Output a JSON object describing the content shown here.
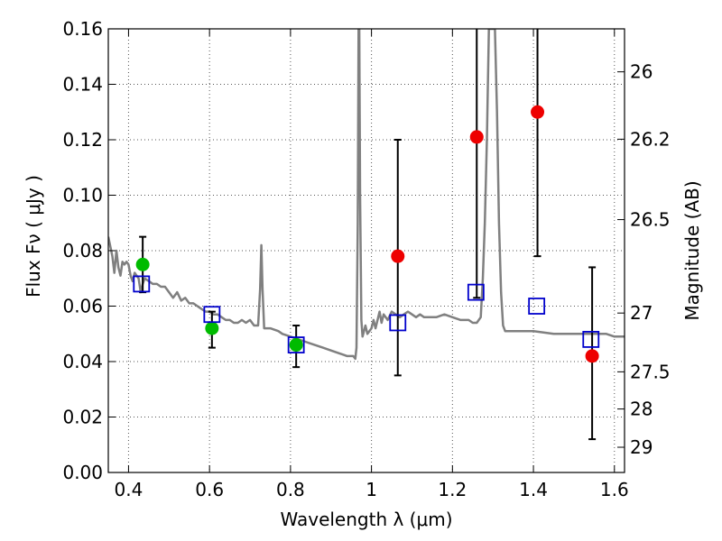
{
  "chart_data": {
    "type": "scatter",
    "xlabel": "Wavelength  λ (μm)",
    "ylabel": "Flux  Fν  ( μJy )",
    "ylabel_right": "Magnitude (AB)",
    "xlim": [
      0.35,
      1.625
    ],
    "ylim": [
      0.0,
      0.16
    ],
    "grid": true,
    "x_ticks": [
      0.4,
      0.6,
      0.8,
      1.0,
      1.2,
      1.4,
      1.6
    ],
    "x_tick_labels": [
      "0.4",
      "0.6",
      "0.8",
      "1",
      "1.2",
      "1.4",
      "1.6"
    ],
    "y_ticks": [
      0.0,
      0.02,
      0.04,
      0.06,
      0.08,
      0.1,
      0.12,
      0.14,
      0.16
    ],
    "y_tick_labels": [
      "0.00",
      "0.02",
      "0.04",
      "0.06",
      "0.08",
      "0.10",
      "0.12",
      "0.14",
      "0.16"
    ],
    "right_ticks": [
      {
        "label": "26",
        "flux": 0.1445
      },
      {
        "label": "26.2",
        "flux": 0.1202
      },
      {
        "label": "26.5",
        "flux": 0.0912
      },
      {
        "label": "27",
        "flux": 0.0575
      },
      {
        "label": "27.5",
        "flux": 0.0363
      },
      {
        "label": "28",
        "flux": 0.0229
      },
      {
        "label": "29",
        "flux": 0.0091
      }
    ],
    "colors": {
      "template": "#808080",
      "ground": "#00bb00",
      "hst": "#ee0000",
      "model": "#0000cc",
      "errorbar": "#000000",
      "grid": "#555555"
    },
    "template_spectrum": [
      [
        0.35,
        0.085
      ],
      [
        0.36,
        0.078
      ],
      [
        0.365,
        0.072
      ],
      [
        0.37,
        0.08
      ],
      [
        0.375,
        0.074
      ],
      [
        0.38,
        0.071
      ],
      [
        0.385,
        0.076
      ],
      [
        0.39,
        0.075
      ],
      [
        0.395,
        0.076
      ],
      [
        0.4,
        0.075
      ],
      [
        0.405,
        0.071
      ],
      [
        0.41,
        0.069
      ],
      [
        0.415,
        0.072
      ],
      [
        0.42,
        0.071
      ],
      [
        0.425,
        0.07
      ],
      [
        0.43,
        0.065
      ],
      [
        0.435,
        0.068
      ],
      [
        0.44,
        0.07
      ],
      [
        0.45,
        0.069
      ],
      [
        0.46,
        0.068
      ],
      [
        0.47,
        0.068
      ],
      [
        0.48,
        0.067
      ],
      [
        0.49,
        0.067
      ],
      [
        0.5,
        0.065
      ],
      [
        0.51,
        0.063
      ],
      [
        0.52,
        0.065
      ],
      [
        0.53,
        0.062
      ],
      [
        0.54,
        0.063
      ],
      [
        0.55,
        0.061
      ],
      [
        0.56,
        0.061
      ],
      [
        0.57,
        0.06
      ],
      [
        0.58,
        0.059
      ],
      [
        0.59,
        0.058
      ],
      [
        0.6,
        0.058
      ],
      [
        0.61,
        0.057
      ],
      [
        0.62,
        0.057
      ],
      [
        0.63,
        0.056
      ],
      [
        0.64,
        0.055
      ],
      [
        0.65,
        0.055
      ],
      [
        0.66,
        0.054
      ],
      [
        0.67,
        0.054
      ],
      [
        0.68,
        0.055
      ],
      [
        0.69,
        0.054
      ],
      [
        0.7,
        0.055
      ],
      [
        0.71,
        0.053
      ],
      [
        0.72,
        0.053
      ],
      [
        0.725,
        0.066
      ],
      [
        0.728,
        0.082
      ],
      [
        0.731,
        0.066
      ],
      [
        0.735,
        0.052
      ],
      [
        0.75,
        0.052
      ],
      [
        0.77,
        0.051
      ],
      [
        0.78,
        0.05
      ],
      [
        0.8,
        0.049
      ],
      [
        0.82,
        0.048
      ],
      [
        0.84,
        0.047
      ],
      [
        0.86,
        0.046
      ],
      [
        0.88,
        0.045
      ],
      [
        0.9,
        0.044
      ],
      [
        0.92,
        0.043
      ],
      [
        0.94,
        0.042
      ],
      [
        0.955,
        0.042
      ],
      [
        0.96,
        0.041
      ],
      [
        0.963,
        0.045
      ],
      [
        0.966,
        0.09
      ],
      [
        0.968,
        0.16
      ],
      [
        0.97,
        0.16
      ],
      [
        0.972,
        0.1
      ],
      [
        0.975,
        0.055
      ],
      [
        0.978,
        0.049
      ],
      [
        0.985,
        0.053
      ],
      [
        0.99,
        0.05
      ],
      [
        1.0,
        0.052
      ],
      [
        1.005,
        0.055
      ],
      [
        1.01,
        0.052
      ],
      [
        1.02,
        0.058
      ],
      [
        1.025,
        0.054
      ],
      [
        1.03,
        0.057
      ],
      [
        1.04,
        0.055
      ],
      [
        1.05,
        0.058
      ],
      [
        1.06,
        0.057
      ],
      [
        1.07,
        0.056
      ],
      [
        1.08,
        0.057
      ],
      [
        1.09,
        0.058
      ],
      [
        1.1,
        0.057
      ],
      [
        1.11,
        0.056
      ],
      [
        1.12,
        0.057
      ],
      [
        1.13,
        0.056
      ],
      [
        1.14,
        0.056
      ],
      [
        1.16,
        0.056
      ],
      [
        1.18,
        0.057
      ],
      [
        1.2,
        0.056
      ],
      [
        1.22,
        0.055
      ],
      [
        1.24,
        0.055
      ],
      [
        1.25,
        0.054
      ],
      [
        1.26,
        0.054
      ],
      [
        1.27,
        0.056
      ],
      [
        1.275,
        0.07
      ],
      [
        1.28,
        0.09
      ],
      [
        1.285,
        0.12
      ],
      [
        1.29,
        0.16
      ],
      [
        1.305,
        0.16
      ],
      [
        1.31,
        0.13
      ],
      [
        1.315,
        0.09
      ],
      [
        1.32,
        0.065
      ],
      [
        1.325,
        0.053
      ],
      [
        1.33,
        0.051
      ],
      [
        1.35,
        0.051
      ],
      [
        1.4,
        0.051
      ],
      [
        1.45,
        0.05
      ],
      [
        1.5,
        0.05
      ],
      [
        1.55,
        0.05
      ],
      [
        1.58,
        0.05
      ],
      [
        1.6,
        0.049
      ],
      [
        1.625,
        0.049
      ]
    ],
    "series": [
      {
        "marker": "filled-circle",
        "color": "#00bb00",
        "points": [
          {
            "x": 0.435,
            "y": 0.075,
            "yerr_low": 0.065,
            "yerr_high": 0.085
          },
          {
            "x": 0.606,
            "y": 0.052,
            "yerr_low": 0.045,
            "yerr_high": 0.058
          },
          {
            "x": 0.814,
            "y": 0.046,
            "yerr_low": 0.038,
            "yerr_high": 0.053
          }
        ]
      },
      {
        "marker": "filled-circle",
        "color": "#ee0000",
        "points": [
          {
            "x": 1.065,
            "y": 0.078,
            "yerr_low": 0.035,
            "yerr_high": 0.12
          },
          {
            "x": 1.26,
            "y": 0.121,
            "yerr_low": 0.063,
            "yerr_high": 0.165
          },
          {
            "x": 1.41,
            "y": 0.13,
            "yerr_low": 0.078,
            "yerr_high": 0.165
          },
          {
            "x": 1.545,
            "y": 0.042,
            "yerr_low": 0.012,
            "yerr_high": 0.074
          }
        ]
      },
      {
        "marker": "open-square",
        "color": "#0000cc",
        "points": [
          {
            "x": 0.432,
            "y": 0.068
          },
          {
            "x": 0.606,
            "y": 0.057
          },
          {
            "x": 0.814,
            "y": 0.046
          },
          {
            "x": 1.065,
            "y": 0.054
          },
          {
            "x": 1.258,
            "y": 0.065
          },
          {
            "x": 1.408,
            "y": 0.06
          },
          {
            "x": 1.542,
            "y": 0.048
          }
        ]
      }
    ]
  }
}
